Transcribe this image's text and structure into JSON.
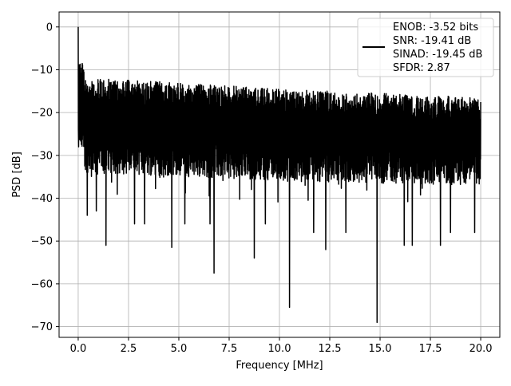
{
  "chart_data": {
    "type": "line",
    "title": "",
    "xlabel": "Frequency [MHz]",
    "ylabel": "PSD [dB]",
    "xlim": [
      -0.95,
      20.95
    ],
    "ylim": [
      -72.5,
      3.5
    ],
    "xticks": [
      0.0,
      2.5,
      5.0,
      7.5,
      10.0,
      12.5,
      15.0,
      17.5,
      20.0
    ],
    "xtick_labels": [
      "0.0",
      "2.5",
      "5.0",
      "7.5",
      "10.0",
      "12.5",
      "15.0",
      "17.5",
      "20.0"
    ],
    "yticks": [
      0,
      -10,
      -20,
      -30,
      -40,
      -50,
      -60,
      -70
    ],
    "ytick_labels": [
      "0",
      "−10",
      "−20",
      "−30",
      "−40",
      "−50",
      "−60",
      "−70"
    ],
    "grid": true,
    "legend_position": "top-right",
    "series": [
      {
        "name": "PSD",
        "color": "#000000",
        "x_range": [
          0.0,
          20.0
        ],
        "noise_band_upper": [
          [
            0.5,
            -12
          ],
          [
            5,
            -13
          ],
          [
            10,
            -14.5
          ],
          [
            15,
            -15.5
          ],
          [
            20,
            -16.5
          ]
        ],
        "noise_band_lower": [
          [
            0.5,
            -34
          ],
          [
            10,
            -36
          ],
          [
            20,
            -37
          ]
        ],
        "notable_points": [
          [
            0.0,
            0.0
          ],
          [
            0.02,
            -28
          ],
          [
            0.45,
            -44
          ],
          [
            0.9,
            -43
          ],
          [
            1.38,
            -51
          ],
          [
            2.8,
            -46
          ],
          [
            3.3,
            -46
          ],
          [
            4.65,
            -51.5
          ],
          [
            5.3,
            -46
          ],
          [
            6.55,
            -46
          ],
          [
            6.75,
            -57.5
          ],
          [
            8.75,
            -54
          ],
          [
            9.3,
            -46
          ],
          [
            10.5,
            -65.5
          ],
          [
            11.7,
            -48
          ],
          [
            12.3,
            -52
          ],
          [
            13.3,
            -48
          ],
          [
            14.85,
            -69
          ],
          [
            16.2,
            -51
          ],
          [
            16.6,
            -51
          ],
          [
            18.0,
            -51
          ],
          [
            18.5,
            -48
          ],
          [
            19.7,
            -48
          ]
        ]
      }
    ],
    "legend": {
      "lines": [
        "ENOB: -3.52 bits",
        "SNR: -19.41 dB",
        "SINAD: -19.45 dB",
        "SFDR: 2.87"
      ]
    }
  }
}
